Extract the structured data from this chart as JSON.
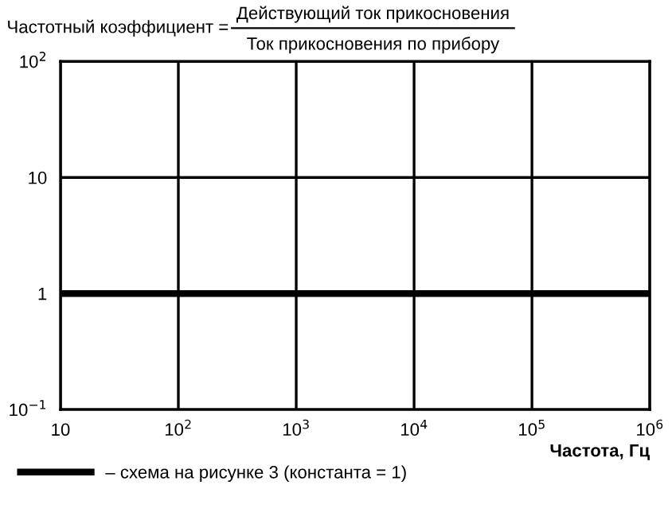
{
  "chart_data": {
    "type": "line",
    "title": "Частотный коэффициент =",
    "annotations": [
      "Действующий ток прикосновения",
      "Ток прикосновения по прибору"
    ],
    "xlabel": "Частота, Гц",
    "log": "xy",
    "x": [
      10,
      1000000
    ],
    "series": [
      {
        "name": "– схема на рисунке 3 (константа = 1)",
        "color": "#000000",
        "values": [
          1,
          1
        ]
      }
    ],
    "xlim": [
      10,
      1000000
    ],
    "ylim": [
      0.1,
      100
    ],
    "xticks": [
      10,
      {
        "value": 100,
        "label": "10$^{2}$"
      },
      {
        "value": 1000,
        "label": "10$^{3}$"
      },
      {
        "value": 10000,
        "label": "10$^{4}$"
      },
      {
        "value": 100000,
        "label": "10$^{5}$"
      },
      {
        "value": 1000000,
        "label": "10$^{6}$"
      }
    ],
    "yticks": [
      {
        "value": 0.1,
        "label": "10$^{−1}$"
      },
      1,
      10,
      {
        "value": 100,
        "label": "10$^{2}$"
      }
    ],
    "grid": true,
    "legend": "bottom",
    "line_style": "solid",
    "marker": "none"
  }
}
